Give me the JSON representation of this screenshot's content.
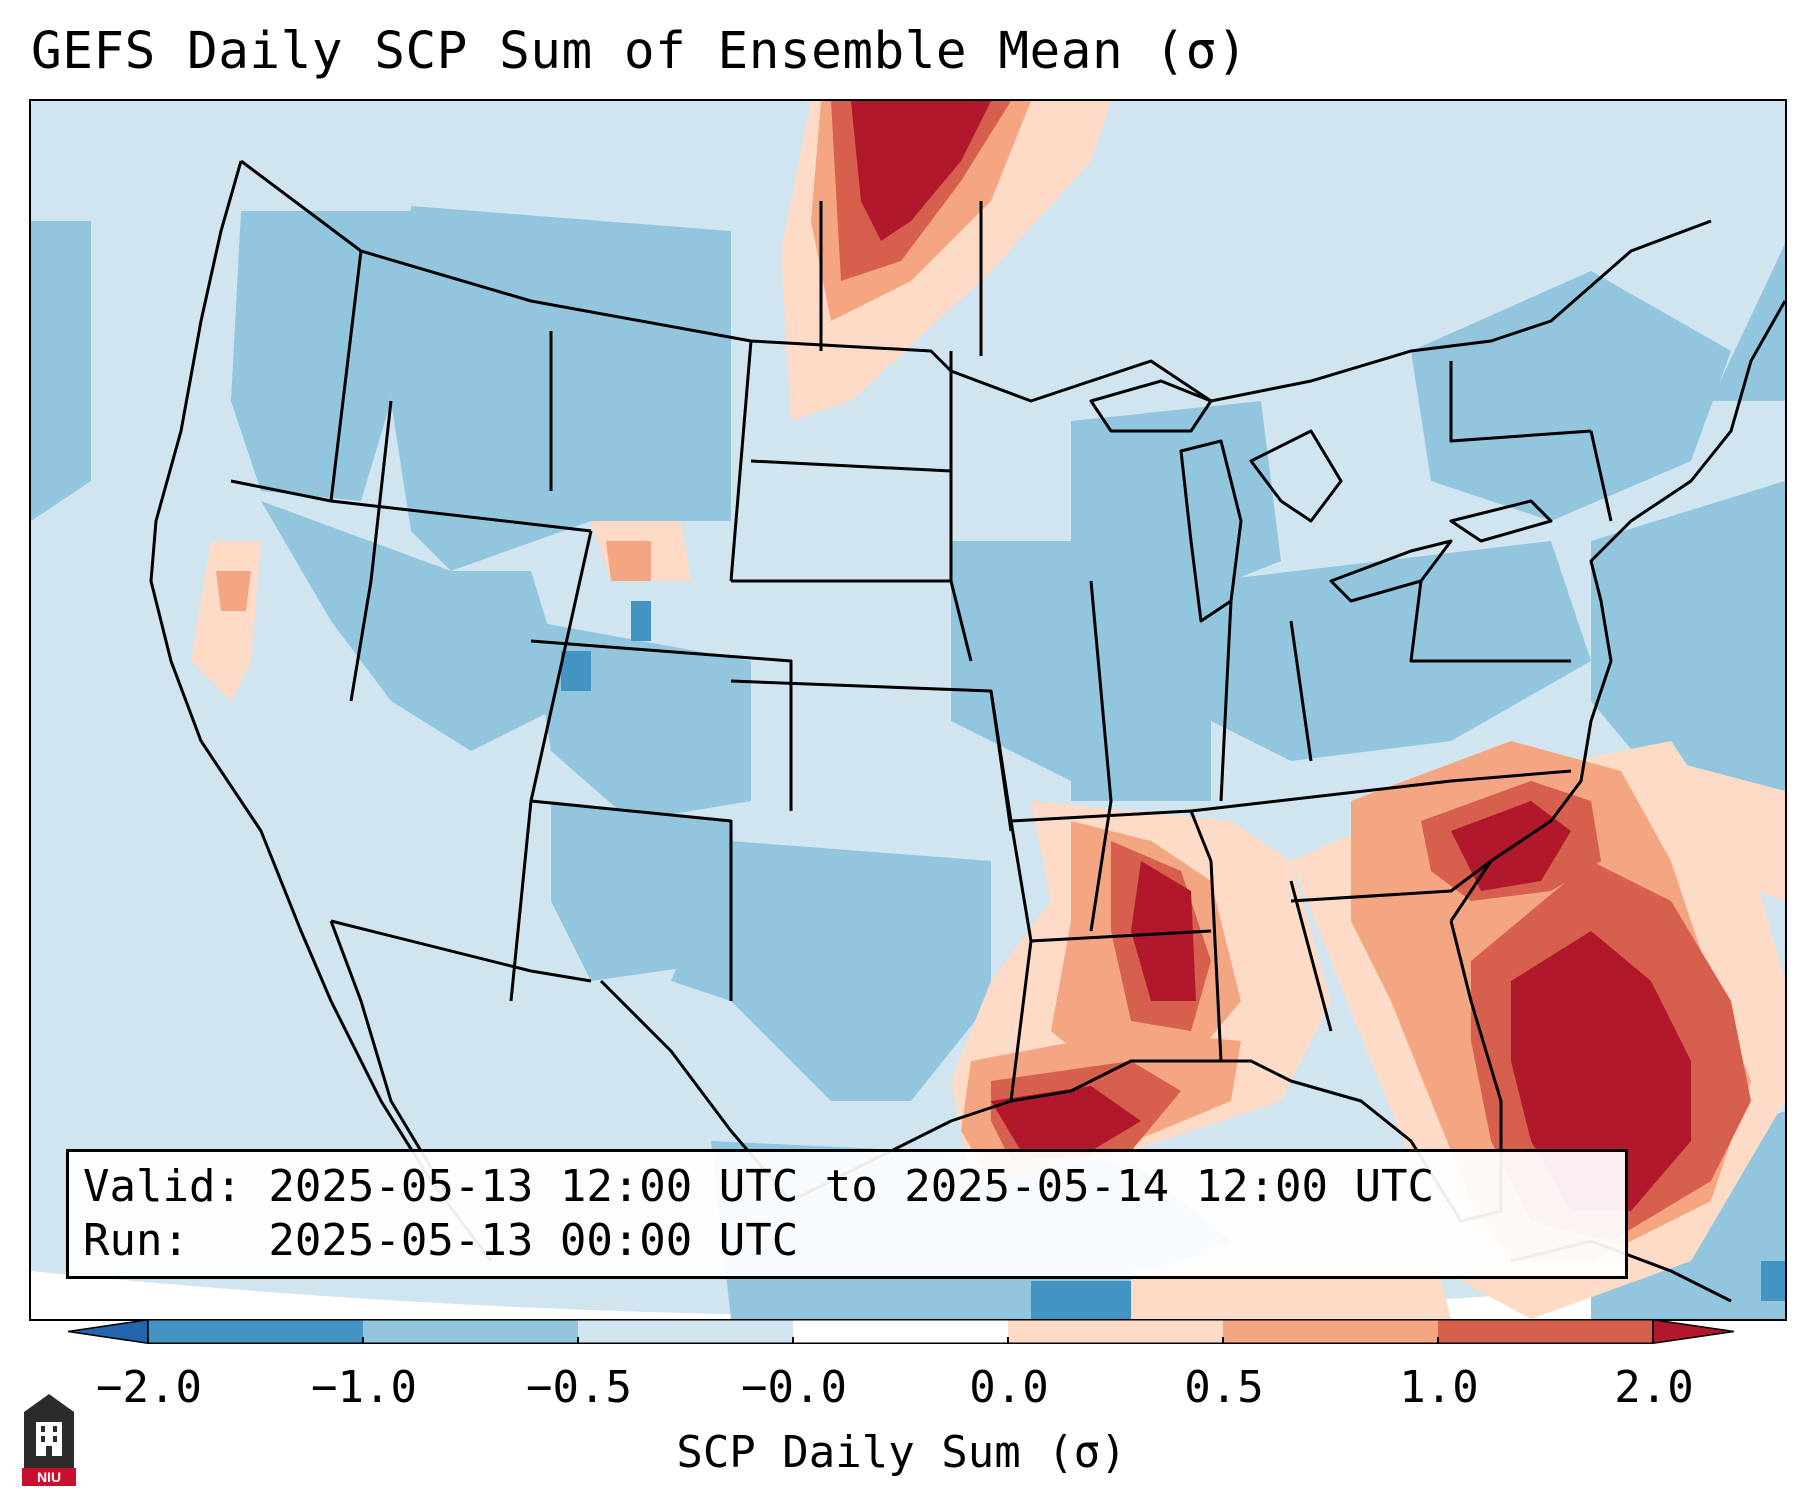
{
  "title": "GEFS Daily SCP Sum of Ensemble Mean (σ)",
  "info": {
    "valid_line": "Valid: 2025-05-13 12:00 UTC to 2025-05-14 12:00 UTC",
    "run_line": "Run:   2025-05-13 00:00 UTC"
  },
  "colorbar": {
    "label": "SCP Daily Sum (σ)",
    "ticks": [
      "−2.0",
      "−1.0",
      "−0.5",
      "−0.0",
      "0.0",
      "0.5",
      "1.0",
      "2.0"
    ],
    "colors": [
      "#2166ac",
      "#4393c3",
      "#92c5de",
      "#d1e5f0",
      "#ffffff",
      "#fddbc7",
      "#f4a582",
      "#d6604d",
      "#b2182b"
    ]
  },
  "logo": {
    "text": "NIU"
  },
  "map": {
    "background": "#d1e5f0",
    "regions": [
      {
        "name": "mid-atlantic-southeast-max",
        "level": "2.0 and above",
        "color": "#b2182b"
      },
      {
        "name": "lower-mississippi-max",
        "level": "2.0 and above",
        "color": "#b2182b"
      },
      {
        "name": "northern-gulf-max",
        "level": "2.0 and above",
        "color": "#b2182b"
      },
      {
        "name": "southern-saskatchewan-max",
        "level": "2.0 and above",
        "color": "#b2182b"
      }
    ]
  }
}
